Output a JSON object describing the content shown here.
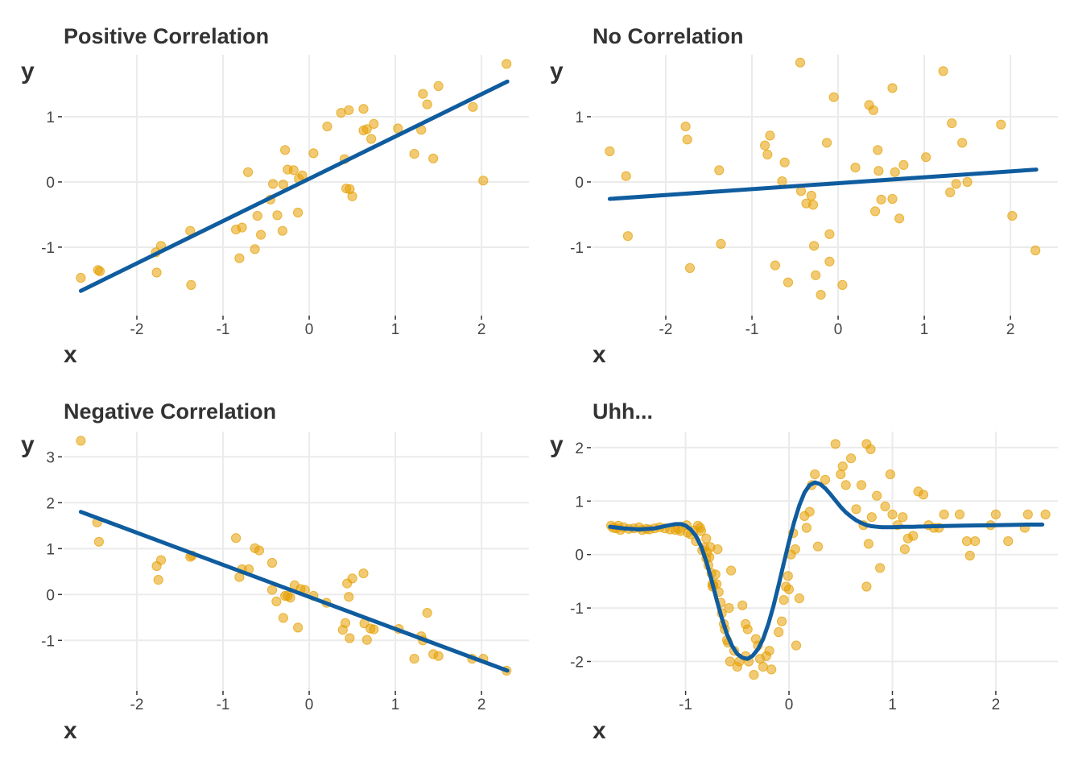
{
  "colors": {
    "point": "#E69F00",
    "line": "#0F5C9E",
    "grid": "#EBEBEB",
    "text": "#333333"
  },
  "chart_data": [
    {
      "type": "scatter",
      "title": "Positive Correlation",
      "xlabel": "x",
      "ylabel": "y",
      "xlim": [
        -2.85,
        2.55
      ],
      "ylim": [
        -2.05,
        1.95
      ],
      "xticks": [
        -2,
        -1,
        0,
        1,
        2
      ],
      "xtick_labels": [
        "-2",
        "-1",
        "0",
        "1",
        "2"
      ],
      "yticks": [
        -1,
        0,
        1
      ],
      "ytick_labels": [
        "-1",
        "0",
        "1"
      ],
      "fit": {
        "kind": "linear",
        "x": [
          -2.65,
          2.3
        ],
        "y": [
          -1.67,
          1.54
        ]
      },
      "points": [
        [
          -2.65,
          -1.47
        ],
        [
          -2.45,
          -1.35
        ],
        [
          -2.43,
          -1.37
        ],
        [
          -1.77,
          -1.39
        ],
        [
          -1.78,
          -1.08
        ],
        [
          -1.72,
          -0.98
        ],
        [
          -1.38,
          -0.75
        ],
        [
          -1.37,
          -1.58
        ],
        [
          -0.85,
          -0.73
        ],
        [
          -0.78,
          -0.7
        ],
        [
          -0.81,
          -1.17
        ],
        [
          -0.71,
          0.15
        ],
        [
          -0.63,
          -1.03
        ],
        [
          -0.6,
          -0.52
        ],
        [
          -0.56,
          -0.81
        ],
        [
          -0.45,
          -0.27
        ],
        [
          -0.42,
          -0.03
        ],
        [
          -0.37,
          -0.51
        ],
        [
          -0.31,
          -0.75
        ],
        [
          -0.3,
          -0.04
        ],
        [
          -0.28,
          0.49
        ],
        [
          -0.25,
          0.19
        ],
        [
          -0.18,
          0.18
        ],
        [
          -0.13,
          -0.47
        ],
        [
          -0.12,
          0.05
        ],
        [
          -0.08,
          0.1
        ],
        [
          0.05,
          0.44
        ],
        [
          0.21,
          0.85
        ],
        [
          0.37,
          1.06
        ],
        [
          0.41,
          0.35
        ],
        [
          0.43,
          -0.1
        ],
        [
          0.46,
          1.1
        ],
        [
          0.47,
          -0.11
        ],
        [
          0.5,
          -0.22
        ],
        [
          0.63,
          1.12
        ],
        [
          0.63,
          0.79
        ],
        [
          0.67,
          0.81
        ],
        [
          0.72,
          0.66
        ],
        [
          0.75,
          0.89
        ],
        [
          1.03,
          0.82
        ],
        [
          1.22,
          0.43
        ],
        [
          1.3,
          0.8
        ],
        [
          1.32,
          1.35
        ],
        [
          1.37,
          1.19
        ],
        [
          1.44,
          0.36
        ],
        [
          1.5,
          1.47
        ],
        [
          1.9,
          1.15
        ],
        [
          2.02,
          0.02
        ],
        [
          2.29,
          1.81
        ]
      ]
    },
    {
      "type": "scatter",
      "title": "No Correlation",
      "xlabel": "x",
      "ylabel": "y",
      "xlim": [
        -2.85,
        2.55
      ],
      "ylim": [
        -2.05,
        1.95
      ],
      "xticks": [
        -2,
        -1,
        0,
        1,
        2
      ],
      "xtick_labels": [
        "-2",
        "-1",
        "0",
        "1",
        "2"
      ],
      "yticks": [
        -1,
        0,
        1
      ],
      "ytick_labels": [
        "-1",
        "0",
        "1"
      ],
      "fit": {
        "kind": "linear",
        "x": [
          -2.65,
          2.3
        ],
        "y": [
          -0.26,
          0.19
        ]
      },
      "points": [
        [
          -2.65,
          0.47
        ],
        [
          -2.46,
          0.09
        ],
        [
          -2.44,
          -0.83
        ],
        [
          -1.77,
          0.85
        ],
        [
          -1.75,
          0.65
        ],
        [
          -1.72,
          -1.32
        ],
        [
          -1.38,
          0.18
        ],
        [
          -1.36,
          -0.95
        ],
        [
          -0.85,
          0.56
        ],
        [
          -0.82,
          0.42
        ],
        [
          -0.79,
          0.71
        ],
        [
          -0.73,
          -1.28
        ],
        [
          -0.65,
          0.01
        ],
        [
          -0.62,
          0.3
        ],
        [
          -0.58,
          -1.54
        ],
        [
          -0.44,
          1.83
        ],
        [
          -0.43,
          -0.14
        ],
        [
          -0.37,
          -0.33
        ],
        [
          -0.31,
          -0.21
        ],
        [
          -0.29,
          -0.35
        ],
        [
          -0.28,
          -0.98
        ],
        [
          -0.26,
          -1.43
        ],
        [
          -0.2,
          -1.73
        ],
        [
          -0.13,
          0.6
        ],
        [
          -0.1,
          -0.8
        ],
        [
          -0.1,
          -1.22
        ],
        [
          -0.05,
          1.3
        ],
        [
          0.05,
          -1.58
        ],
        [
          0.2,
          0.22
        ],
        [
          0.36,
          1.18
        ],
        [
          0.41,
          1.1
        ],
        [
          0.43,
          -0.45
        ],
        [
          0.46,
          0.49
        ],
        [
          0.47,
          0.17
        ],
        [
          0.5,
          -0.27
        ],
        [
          0.63,
          1.44
        ],
        [
          0.63,
          -0.26
        ],
        [
          0.66,
          0.15
        ],
        [
          0.71,
          -0.56
        ],
        [
          0.76,
          0.26
        ],
        [
          1.02,
          0.38
        ],
        [
          1.3,
          -0.16
        ],
        [
          1.32,
          0.9
        ],
        [
          1.37,
          -0.03
        ],
        [
          1.44,
          0.6
        ],
        [
          1.5,
          0.0
        ],
        [
          1.89,
          0.88
        ],
        [
          2.02,
          -0.52
        ],
        [
          2.29,
          -1.05
        ],
        [
          1.22,
          1.7
        ]
      ]
    },
    {
      "type": "scatter",
      "title": "Negative Correlation",
      "xlabel": "x",
      "ylabel": "y",
      "xlim": [
        -2.85,
        2.55
      ],
      "ylim": [
        -2.1,
        3.55
      ],
      "xticks": [
        -2,
        -1,
        0,
        1,
        2
      ],
      "xtick_labels": [
        "-2",
        "-1",
        "0",
        "1",
        "2"
      ],
      "yticks": [
        -1,
        0,
        1,
        2,
        3
      ],
      "ytick_labels": [
        "-1",
        "0",
        "1",
        "2",
        "3"
      ],
      "fit": {
        "kind": "linear",
        "x": [
          -2.65,
          2.3
        ],
        "y": [
          1.8,
          -1.66
        ]
      },
      "points": [
        [
          -2.65,
          3.35
        ],
        [
          -2.46,
          1.57
        ],
        [
          -2.44,
          1.15
        ],
        [
          -1.77,
          0.62
        ],
        [
          -1.75,
          0.32
        ],
        [
          -1.72,
          0.75
        ],
        [
          -1.38,
          0.82
        ],
        [
          -1.36,
          0.85
        ],
        [
          -0.85,
          1.23
        ],
        [
          -0.81,
          0.38
        ],
        [
          -0.78,
          0.55
        ],
        [
          -0.7,
          0.55
        ],
        [
          -0.63,
          1.01
        ],
        [
          -0.58,
          0.96
        ],
        [
          -0.43,
          0.69
        ],
        [
          -0.43,
          0.1
        ],
        [
          -0.38,
          -0.15
        ],
        [
          -0.3,
          -0.51
        ],
        [
          -0.28,
          -0.03
        ],
        [
          -0.25,
          -0.03
        ],
        [
          -0.22,
          -0.07
        ],
        [
          -0.17,
          0.2
        ],
        [
          -0.13,
          -0.72
        ],
        [
          -0.1,
          0.12
        ],
        [
          -0.05,
          0.1
        ],
        [
          0.05,
          -0.03
        ],
        [
          0.2,
          -0.18
        ],
        [
          0.39,
          -0.77
        ],
        [
          0.42,
          -0.62
        ],
        [
          0.44,
          0.24
        ],
        [
          0.46,
          -0.05
        ],
        [
          0.47,
          -0.95
        ],
        [
          0.5,
          0.35
        ],
        [
          0.63,
          0.46
        ],
        [
          0.64,
          -0.63
        ],
        [
          0.67,
          -0.99
        ],
        [
          0.71,
          -0.74
        ],
        [
          0.75,
          -0.76
        ],
        [
          1.04,
          -0.75
        ],
        [
          1.22,
          -1.4
        ],
        [
          1.3,
          -0.91
        ],
        [
          1.32,
          -1.0
        ],
        [
          1.37,
          -0.4
        ],
        [
          1.44,
          -1.3
        ],
        [
          1.5,
          -1.34
        ],
        [
          1.89,
          -1.4
        ],
        [
          2.02,
          -1.4
        ],
        [
          2.29,
          -1.66
        ]
      ]
    },
    {
      "type": "scatter",
      "title": "Uhh...",
      "xlabel": "x",
      "ylabel": "y",
      "xlim": [
        -1.9,
        2.6
      ],
      "ylim": [
        -2.55,
        2.3
      ],
      "xticks": [
        -1,
        0,
        1,
        2
      ],
      "xtick_labels": [
        "-1",
        "0",
        "1",
        "2"
      ],
      "yticks": [
        -2,
        -1,
        0,
        1,
        2
      ],
      "ytick_labels": [
        "-2",
        "-1",
        "0",
        "1",
        "2"
      ],
      "fit": {
        "kind": "smooth",
        "x": [
          -1.73,
          -1.6,
          -1.45,
          -1.3,
          -1.18,
          -1.1,
          -1.04,
          -1.0,
          -0.95,
          -0.9,
          -0.85,
          -0.8,
          -0.75,
          -0.7,
          -0.65,
          -0.6,
          -0.55,
          -0.5,
          -0.45,
          -0.4,
          -0.35,
          -0.3,
          -0.25,
          -0.2,
          -0.15,
          -0.1,
          -0.05,
          0.0,
          0.05,
          0.1,
          0.15,
          0.2,
          0.25,
          0.3,
          0.35,
          0.4,
          0.45,
          0.5,
          0.55,
          0.6,
          0.65,
          0.7,
          0.75,
          0.8,
          0.85,
          0.9,
          0.95,
          1.0,
          1.1,
          1.2,
          1.4,
          1.7,
          2.0,
          2.3,
          2.45
        ],
        "y": [
          0.52,
          0.49,
          0.47,
          0.49,
          0.54,
          0.57,
          0.57,
          0.54,
          0.47,
          0.35,
          0.15,
          -0.13,
          -0.47,
          -0.84,
          -1.19,
          -1.49,
          -1.71,
          -1.86,
          -1.93,
          -1.95,
          -1.89,
          -1.77,
          -1.58,
          -1.3,
          -0.96,
          -0.57,
          -0.16,
          0.24,
          0.61,
          0.92,
          1.16,
          1.3,
          1.35,
          1.32,
          1.24,
          1.13,
          1.01,
          0.89,
          0.79,
          0.71,
          0.64,
          0.59,
          0.55,
          0.53,
          0.52,
          0.51,
          0.51,
          0.51,
          0.52,
          0.52,
          0.53,
          0.54,
          0.55,
          0.56,
          0.56
        ]
      },
      "points": [
        [
          -1.72,
          0.54
        ],
        [
          -1.7,
          0.5
        ],
        [
          -1.67,
          0.49
        ],
        [
          -1.65,
          0.54
        ],
        [
          -1.63,
          0.46
        ],
        [
          -1.6,
          0.51
        ],
        [
          -1.55,
          0.48
        ],
        [
          -1.5,
          0.49
        ],
        [
          -1.45,
          0.51
        ],
        [
          -1.42,
          0.46
        ],
        [
          -1.38,
          0.48
        ],
        [
          -1.35,
          0.47
        ],
        [
          -1.3,
          0.49
        ],
        [
          -1.25,
          0.51
        ],
        [
          -1.2,
          0.49
        ],
        [
          -1.15,
          0.47
        ],
        [
          -1.1,
          0.46
        ],
        [
          -1.07,
          0.48
        ],
        [
          -1.05,
          0.44
        ],
        [
          -0.99,
          0.55
        ],
        [
          -0.98,
          0.41
        ],
        [
          -0.95,
          0.38
        ],
        [
          -0.88,
          0.54
        ],
        [
          -0.86,
          0.5
        ],
        [
          -0.85,
          0.44
        ],
        [
          -0.84,
          0.08
        ],
        [
          -0.82,
          0.13
        ],
        [
          -0.8,
          -0.07
        ],
        [
          -0.79,
          0.04
        ],
        [
          -0.78,
          -0.2
        ],
        [
          -0.76,
          0.14
        ],
        [
          -0.75,
          -0.35
        ],
        [
          -0.74,
          -0.55
        ],
        [
          -0.73,
          -0.57
        ],
        [
          -0.71,
          -0.37
        ],
        [
          -0.69,
          0.1
        ],
        [
          -0.68,
          -0.7
        ],
        [
          -0.66,
          -0.9
        ],
        [
          -0.65,
          -1.1
        ],
        [
          -0.63,
          -1.3
        ],
        [
          -0.62,
          -1.4
        ],
        [
          -0.6,
          -1.6
        ],
        [
          -0.59,
          -1.65
        ],
        [
          -0.57,
          -2.0
        ],
        [
          -0.56,
          -0.3
        ],
        [
          -0.53,
          -1.8
        ],
        [
          -0.5,
          -2.1
        ],
        [
          -0.48,
          -2.0
        ],
        [
          -0.45,
          -0.95
        ],
        [
          -0.42,
          -1.3
        ],
        [
          -0.39,
          -2.0
        ],
        [
          -0.34,
          -2.25
        ],
        [
          -0.32,
          -1.58
        ],
        [
          -0.3,
          -1.7
        ],
        [
          -0.28,
          -1.95
        ],
        [
          -0.25,
          -2.1
        ],
        [
          -0.22,
          -1.9
        ],
        [
          -0.19,
          -1.8
        ],
        [
          -0.17,
          -2.15
        ],
        [
          -0.1,
          -1.45
        ],
        [
          -0.07,
          -1.25
        ],
        [
          -0.05,
          -0.85
        ],
        [
          -0.03,
          -0.6
        ],
        [
          -0.01,
          -0.4
        ],
        [
          0.0,
          -0.65
        ],
        [
          0.02,
          0.0
        ],
        [
          0.04,
          0.4
        ],
        [
          0.06,
          0.1
        ],
        [
          0.07,
          -1.7
        ],
        [
          0.1,
          -0.82
        ],
        [
          0.15,
          0.72
        ],
        [
          0.17,
          0.5
        ],
        [
          0.2,
          0.8
        ],
        [
          0.22,
          1.3
        ],
        [
          0.25,
          1.5
        ],
        [
          0.28,
          0.15
        ],
        [
          0.35,
          1.4
        ],
        [
          0.45,
          2.07
        ],
        [
          0.5,
          1.5
        ],
        [
          0.52,
          1.65
        ],
        [
          0.55,
          1.3
        ],
        [
          0.6,
          1.8
        ],
        [
          0.65,
          0.85
        ],
        [
          0.7,
          1.3
        ],
        [
          0.72,
          0.55
        ],
        [
          0.75,
          2.07
        ],
        [
          0.77,
          0.2
        ],
        [
          0.79,
          1.97
        ],
        [
          0.85,
          1.1
        ],
        [
          0.88,
          -0.25
        ],
        [
          0.93,
          0.9
        ],
        [
          0.98,
          1.5
        ],
        [
          1.0,
          0.75
        ],
        [
          1.05,
          0.55
        ],
        [
          1.12,
          0.1
        ],
        [
          1.15,
          0.3
        ],
        [
          1.2,
          0.35
        ],
        [
          1.25,
          1.18
        ],
        [
          1.3,
          1.12
        ],
        [
          1.35,
          0.55
        ],
        [
          1.4,
          0.5
        ],
        [
          1.5,
          0.75
        ],
        [
          1.65,
          0.75
        ],
        [
          1.72,
          0.25
        ],
        [
          1.75,
          -0.02
        ],
        [
          1.8,
          0.25
        ],
        [
          1.95,
          0.55
        ],
        [
          2.0,
          0.75
        ],
        [
          2.12,
          0.25
        ],
        [
          2.28,
          0.5
        ],
        [
          2.31,
          0.75
        ],
        [
          2.48,
          0.75
        ],
        [
          -0.74,
          -0.6
        ],
        [
          -0.8,
          0.3
        ],
        [
          -0.9,
          0.25
        ],
        [
          -0.92,
          0.45
        ],
        [
          -0.77,
          -0.05
        ],
        [
          -0.58,
          -1.0
        ],
        [
          -0.4,
          -1.4
        ],
        [
          -0.42,
          -1.9
        ],
        [
          -0.7,
          -0.55
        ],
        [
          0.8,
          0.7
        ],
        [
          0.75,
          -0.6
        ],
        [
          1.1,
          0.7
        ],
        [
          1.45,
          0.5
        ]
      ]
    }
  ]
}
